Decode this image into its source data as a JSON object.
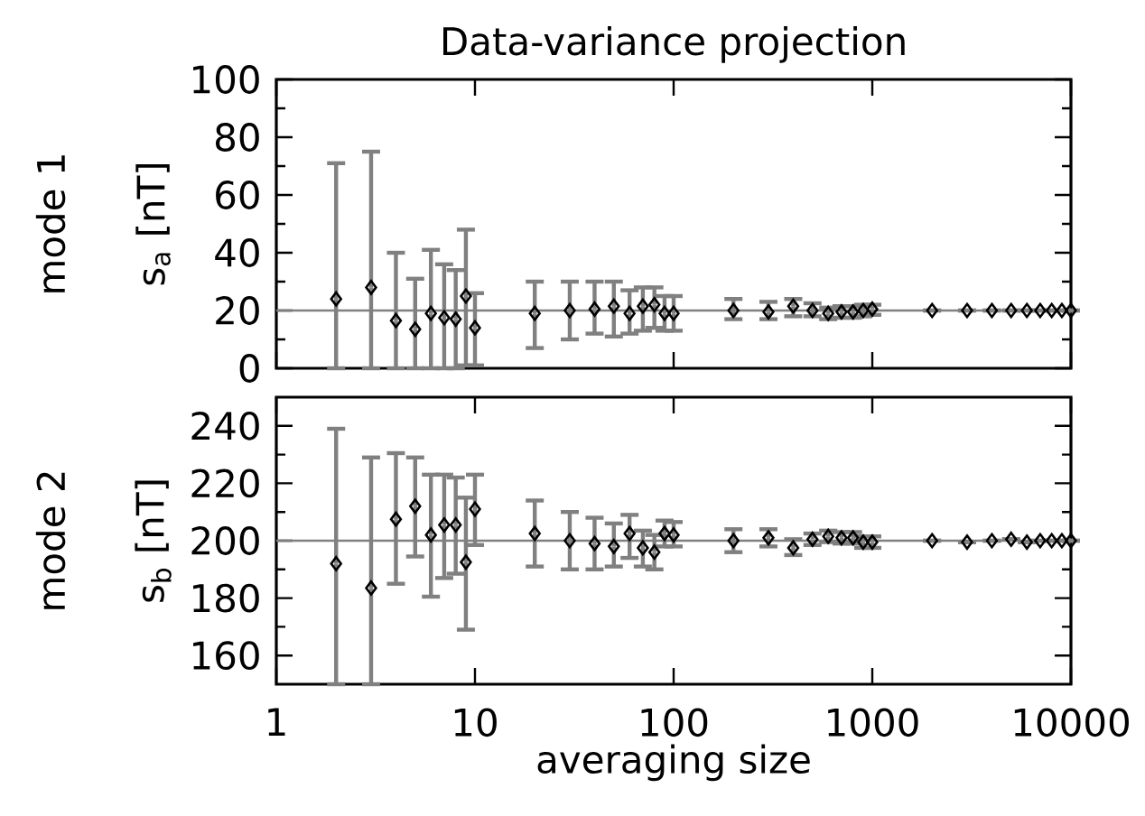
{
  "chart_data": [
    {
      "type": "scatter",
      "title": "Data-variance projection",
      "ylabel": "s$_{a}$ [nT]",
      "annotations": [
        "mode 1"
      ],
      "marker": "diamond",
      "log": "x",
      "tick_labels": "y",
      "xlim": [
        1,
        10000
      ],
      "xticks": [
        1,
        10,
        100,
        1000,
        10000
      ],
      "ylim": [
        0,
        100
      ],
      "yticks": [
        0,
        20,
        40,
        60,
        80,
        100
      ],
      "ref_lines": [
        {
          "axis": "y",
          "value": 20,
          "color": "#808080"
        }
      ],
      "series": [
        {
          "color": "#000000",
          "x": [
            2,
            3,
            4,
            5,
            6,
            7,
            8,
            9,
            10,
            20,
            30,
            40,
            50,
            60,
            70,
            80,
            90,
            100,
            200,
            300,
            400,
            500,
            600,
            700,
            800,
            900,
            1000,
            2000,
            3000,
            4000,
            5000,
            6000,
            7000,
            8000,
            9000,
            10000
          ],
          "values": [
            24,
            28,
            16.5,
            13.5,
            19,
            17.5,
            17,
            25,
            14,
            19,
            20,
            20.5,
            21.5,
            19,
            21.5,
            22,
            19,
            19,
            20,
            19.5,
            21.5,
            20,
            19,
            19.5,
            19.5,
            20,
            20.5,
            20,
            20,
            20,
            20,
            20,
            20,
            20,
            20,
            20
          ],
          "errors": [
            [
              0,
              71
            ],
            [
              0,
              75
            ],
            [
              0,
              40
            ],
            [
              0,
              31
            ],
            [
              0,
              41
            ],
            [
              0,
              36
            ],
            [
              0,
              34
            ],
            [
              1,
              48
            ],
            [
              1,
              26
            ],
            [
              7,
              30
            ],
            [
              10,
              30
            ],
            [
              12,
              30
            ],
            [
              11,
              30
            ],
            [
              12,
              27
            ],
            [
              13,
              28
            ],
            [
              14,
              28
            ],
            [
              13,
              25
            ],
            [
              13,
              25
            ],
            [
              17,
              24
            ],
            [
              17,
              23
            ],
            [
              18,
              24
            ],
            [
              18,
              22.5
            ],
            [
              17,
              21
            ],
            [
              17.5,
              21.5
            ],
            [
              17.5,
              21.5
            ],
            [
              18,
              22
            ],
            [
              18.5,
              22
            ],
            null,
            null,
            null,
            null,
            null,
            null,
            null,
            null,
            null
          ]
        }
      ]
    },
    {
      "type": "scatter",
      "xlabel": "averaging size",
      "ylabel": "s$_{b}$ [nT]",
      "annotations": [
        "mode 2"
      ],
      "marker": "diamond",
      "log": "x",
      "xlim": [
        1,
        10000
      ],
      "xticks": [
        1,
        10,
        100,
        1000,
        10000
      ],
      "ylim": [
        150,
        250
      ],
      "yticks": [
        160,
        180,
        200,
        220,
        240
      ],
      "ref_lines": [
        {
          "axis": "y",
          "value": 200,
          "color": "#808080"
        }
      ],
      "series": [
        {
          "color": "#000000",
          "x": [
            2,
            3,
            4,
            5,
            6,
            7,
            8,
            9,
            10,
            20,
            30,
            40,
            50,
            60,
            70,
            80,
            90,
            100,
            200,
            300,
            400,
            500,
            600,
            700,
            800,
            900,
            1000,
            2000,
            3000,
            4000,
            5000,
            6000,
            7000,
            8000,
            9000,
            10000
          ],
          "values": [
            192,
            183.5,
            207.5,
            212,
            202,
            205.5,
            205.5,
            192.5,
            211,
            202.5,
            200,
            199,
            198,
            202.5,
            197.5,
            196,
            202.5,
            202,
            200,
            201,
            197.5,
            200.5,
            201.5,
            201,
            201,
            199.5,
            199.5,
            200,
            199.5,
            200,
            200.5,
            199.5,
            200,
            200,
            200,
            200
          ],
          "errors": [
            [
              150,
              239
            ],
            [
              150,
              229
            ],
            [
              185,
              230.5
            ],
            [
              194.5,
              229
            ],
            [
              180.5,
              223
            ],
            [
              187,
              223
            ],
            [
              188.5,
              222
            ],
            [
              169,
              215
            ],
            [
              198.5,
              223
            ],
            [
              191,
              214
            ],
            [
              190,
              210
            ],
            [
              190,
              208
            ],
            [
              191,
              206
            ],
            [
              194,
              209
            ],
            [
              191,
              203.5
            ],
            [
              190,
              202
            ],
            [
              198,
              207
            ],
            [
              198,
              206.5
            ],
            [
              196,
              204
            ],
            [
              198,
              204
            ],
            [
              195,
              200.5
            ],
            [
              198.5,
              202.5
            ],
            [
              199.5,
              203.5
            ],
            [
              199,
              203
            ],
            [
              199,
              203
            ],
            [
              197.5,
              201.5
            ],
            [
              197.5,
              201.5
            ],
            null,
            null,
            null,
            null,
            null,
            null,
            null,
            null,
            null
          ]
        }
      ]
    }
  ]
}
